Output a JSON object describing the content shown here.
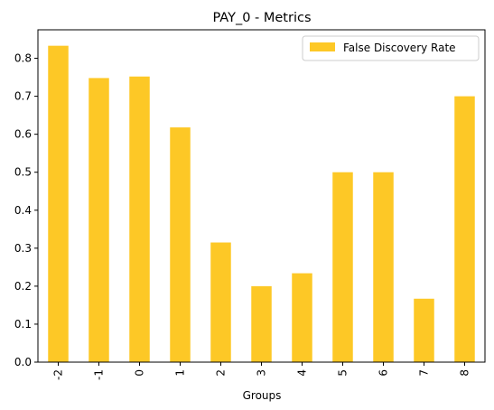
{
  "chart_data": {
    "type": "bar",
    "title": "PAY_0 - Metrics",
    "xlabel": "Groups",
    "ylabel": "",
    "categories": [
      "-2",
      "-1",
      "0",
      "1",
      "2",
      "3",
      "4",
      "5",
      "6",
      "7",
      "8"
    ],
    "series": [
      {
        "name": "False Discovery Rate",
        "values": [
          0.833,
          0.748,
          0.752,
          0.618,
          0.315,
          0.2,
          0.234,
          0.5,
          0.5,
          0.167,
          0.7
        ],
        "color": "#fdc826"
      }
    ],
    "yticks": [
      "0.0",
      "0.1",
      "0.2",
      "0.3",
      "0.4",
      "0.5",
      "0.6",
      "0.7",
      "0.8"
    ],
    "ylim": [
      0,
      0.875
    ],
    "grid": false,
    "legend": "top-right"
  }
}
